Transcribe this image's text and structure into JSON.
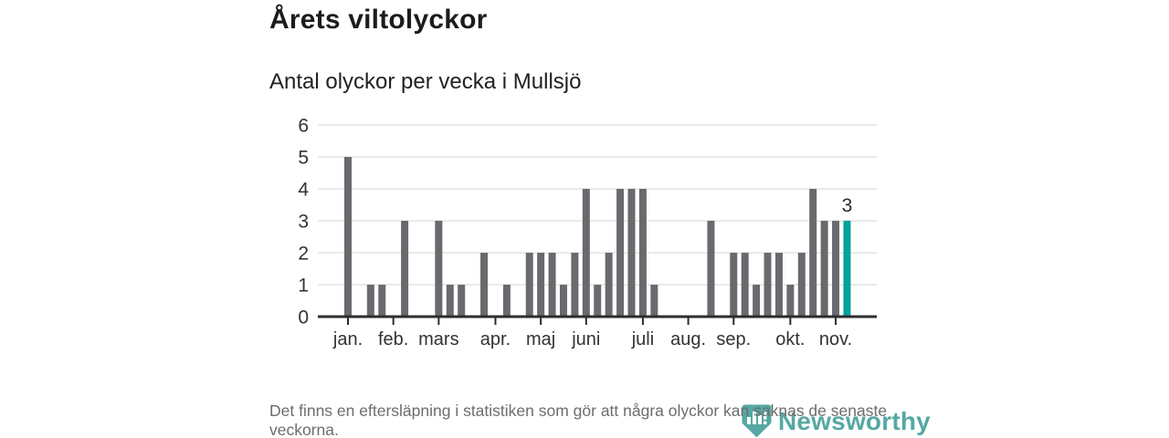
{
  "header": {
    "title": "Årets viltolyckor",
    "subtitle": "Antal olyckor per vecka i Mullsjö"
  },
  "chart_data": {
    "type": "bar",
    "title": "Årets viltolyckor",
    "subtitle": "Antal olyckor per vecka i Mullsjö",
    "x_unit": "vecka (januari–november)",
    "values": [
      5,
      0,
      1,
      1,
      0,
      3,
      0,
      0,
      3,
      1,
      1,
      0,
      2,
      0,
      1,
      0,
      2,
      2,
      2,
      1,
      2,
      4,
      1,
      2,
      4,
      4,
      4,
      1,
      0,
      0,
      0,
      0,
      3,
      0,
      2,
      2,
      1,
      2,
      2,
      1,
      2,
      4,
      3,
      3,
      3
    ],
    "highlight_index": 44,
    "highlight_label": "3",
    "y_ticks": [
      0,
      1,
      2,
      3,
      4,
      5,
      6
    ],
    "ylim": [
      0,
      6
    ],
    "months": [
      {
        "label": "jan.",
        "week": 1
      },
      {
        "label": "feb.",
        "week": 5
      },
      {
        "label": "mars",
        "week": 9
      },
      {
        "label": "apr.",
        "week": 14
      },
      {
        "label": "maj",
        "week": 18
      },
      {
        "label": "juni",
        "week": 22
      },
      {
        "label": "juli",
        "week": 27
      },
      {
        "label": "aug.",
        "week": 31
      },
      {
        "label": "sep.",
        "week": 35
      },
      {
        "label": "okt.",
        "week": 40
      },
      {
        "label": "nov.",
        "week": 44
      }
    ],
    "grid": true,
    "legend": false,
    "colors": {
      "bar": "#69696e",
      "highlight": "#00a39b",
      "grid": "#e3e3e3",
      "axis": "#2d2d2d",
      "axis_text": "#333333"
    }
  },
  "footer": {
    "note": "Det finns en eftersläpning i statistiken som gör att några olyckor kan saknas de senaste veckorna.",
    "logo_text": "Newsworthy",
    "logo_color": "#3f9d96"
  }
}
